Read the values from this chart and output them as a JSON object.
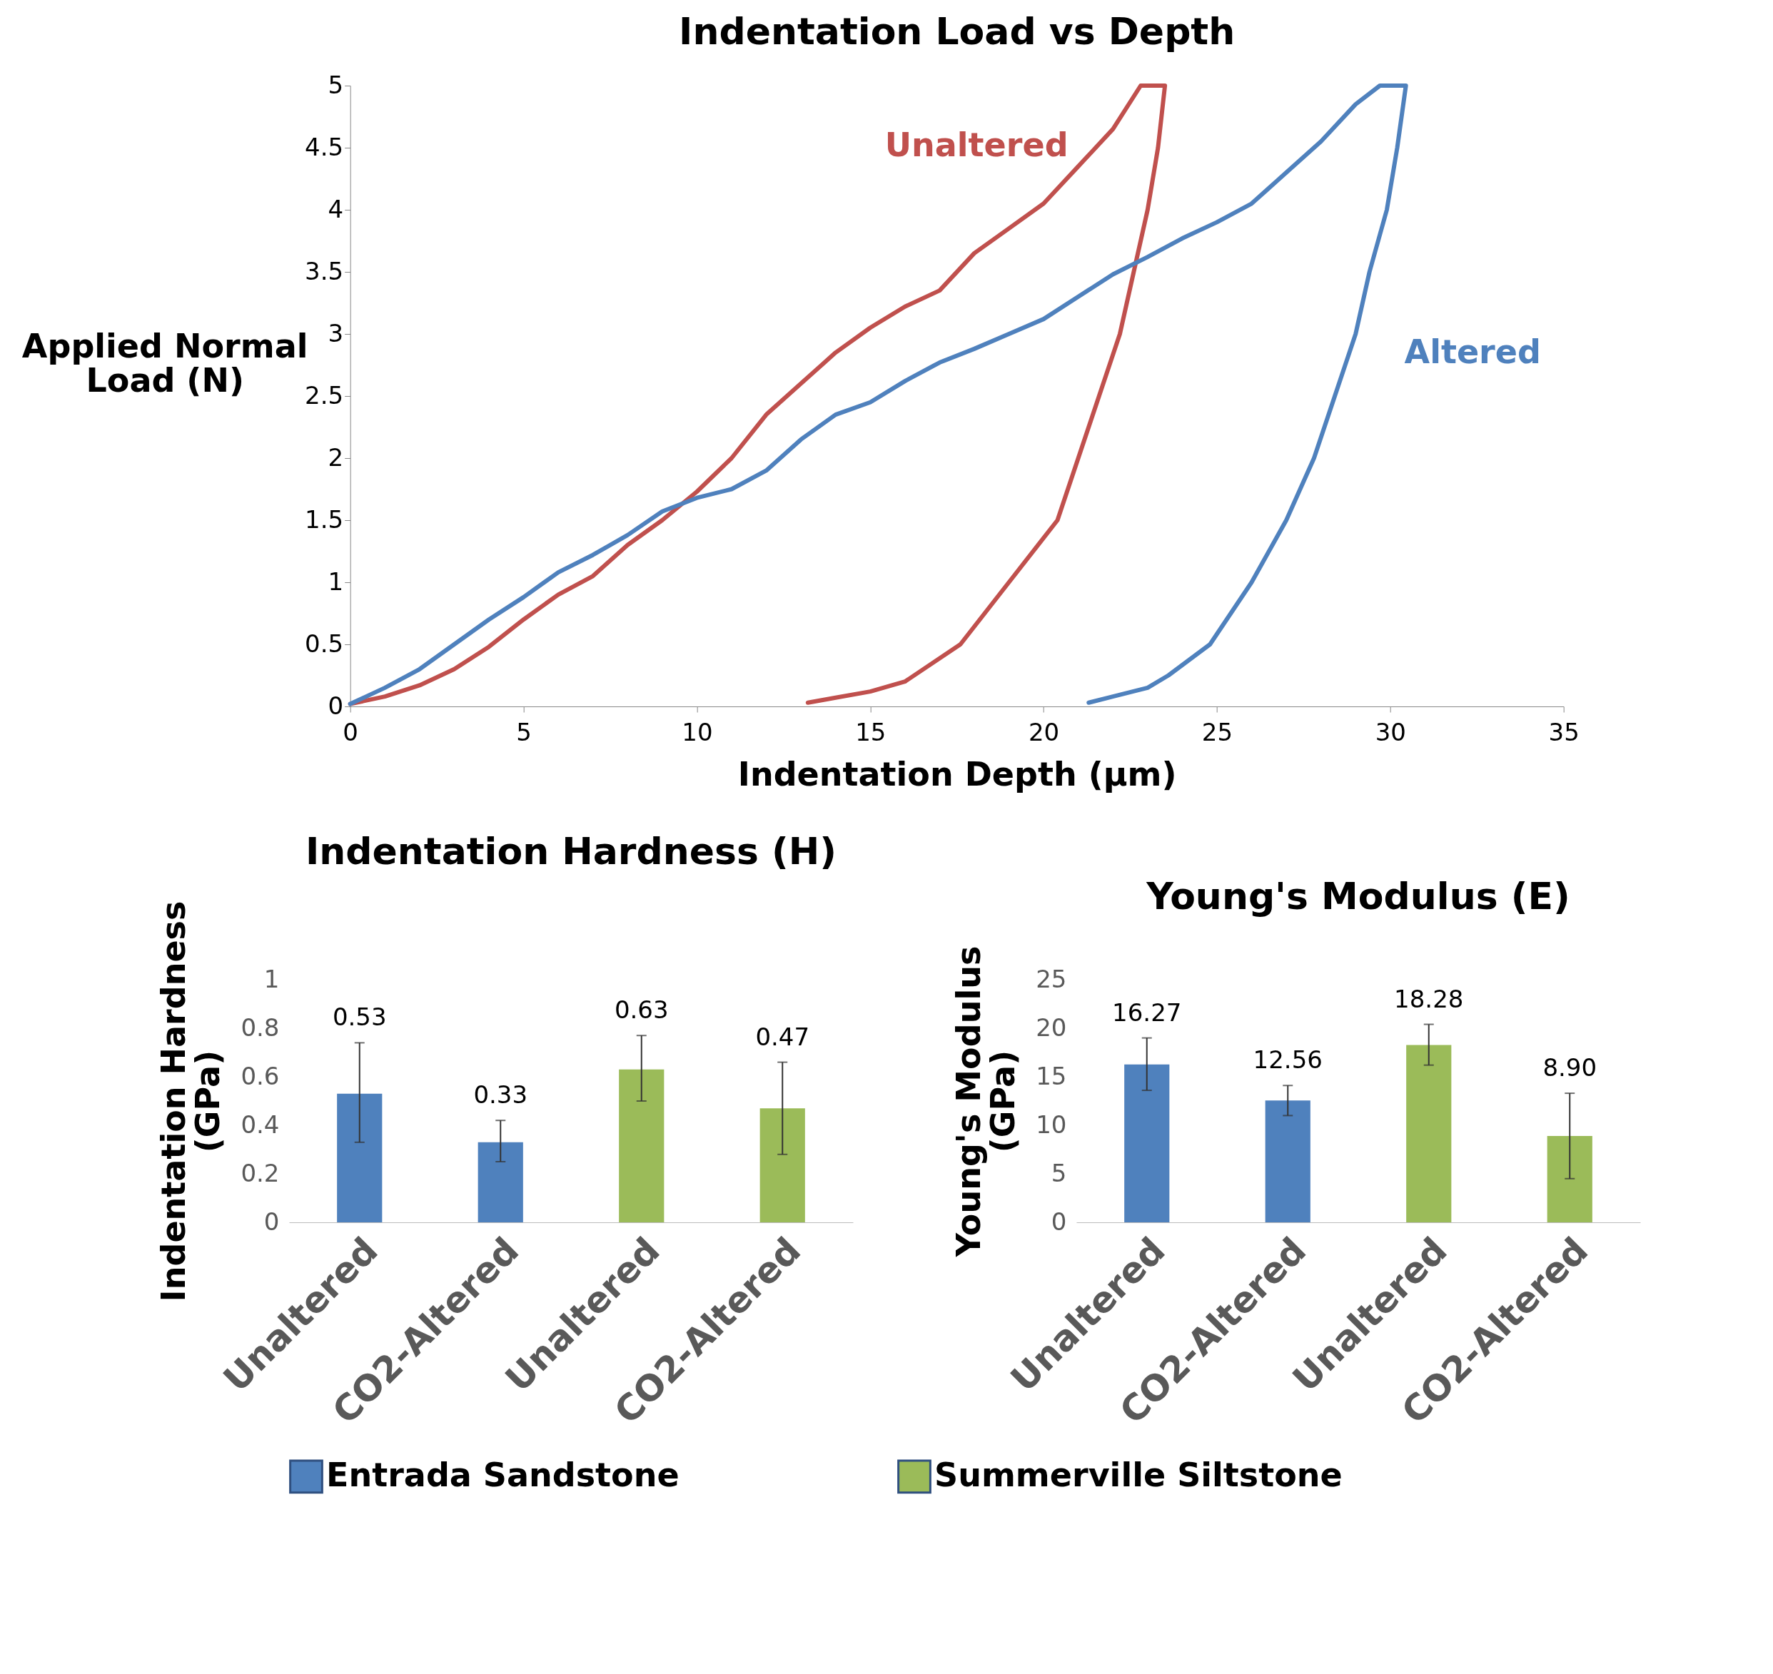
{
  "chart_data": [
    {
      "type": "line",
      "title": "Indentation Load vs Depth",
      "xlabel": "Indentation Depth (µm)",
      "ylabel": "Applied Normal Load (N)",
      "xlim": [
        0,
        35
      ],
      "xticks": [
        0,
        5,
        10,
        15,
        20,
        25,
        30,
        35
      ],
      "ylim": [
        0,
        5
      ],
      "yticks": [
        0,
        0.5,
        1,
        1.5,
        2,
        2.5,
        3,
        3.5,
        4,
        4.5,
        5
      ],
      "grid": false,
      "legend": false,
      "marker": "none",
      "line_style": "solid",
      "series": [
        {
          "name": "Unaltered",
          "color": "#c0504d",
          "x": [
            0,
            1,
            2,
            3,
            4,
            5,
            6,
            7,
            8,
            9,
            10,
            11,
            12,
            13,
            14,
            15,
            16,
            17,
            18,
            19,
            20,
            21,
            22,
            22.8,
            23.5,
            23.3,
            23.0,
            22.6,
            22.2,
            21.6,
            21.0,
            20.4,
            19.0,
            17.6,
            16.0,
            15.0,
            14.0,
            13.2
          ],
          "values": [
            0.02,
            0.08,
            0.17,
            0.3,
            0.48,
            0.7,
            0.9,
            1.05,
            1.3,
            1.5,
            1.73,
            2.0,
            2.35,
            2.6,
            2.85,
            3.05,
            3.22,
            3.35,
            3.65,
            3.85,
            4.05,
            4.35,
            4.65,
            5.0,
            5.0,
            4.5,
            4.0,
            3.5,
            3.0,
            2.5,
            2.0,
            1.5,
            1.0,
            0.5,
            0.2,
            0.12,
            0.07,
            0.03
          ]
        },
        {
          "name": "Altered",
          "color": "#4f81bd",
          "x": [
            0,
            1,
            2,
            3,
            4,
            5,
            6,
            7,
            8,
            9,
            10,
            11,
            12,
            13,
            14,
            15,
            16,
            17,
            18,
            19,
            20,
            21,
            22,
            23,
            24,
            25,
            26,
            27,
            28,
            29,
            29.7,
            30.45,
            30.2,
            29.9,
            29.4,
            29.0,
            28.4,
            27.8,
            27.0,
            26.0,
            24.8,
            23.6,
            23.0,
            22.0,
            21.3
          ],
          "values": [
            0.02,
            0.15,
            0.3,
            0.5,
            0.7,
            0.88,
            1.08,
            1.22,
            1.38,
            1.57,
            1.68,
            1.75,
            1.9,
            2.15,
            2.35,
            2.45,
            2.62,
            2.77,
            2.88,
            3.0,
            3.12,
            3.3,
            3.48,
            3.62,
            3.77,
            3.9,
            4.05,
            4.3,
            4.55,
            4.85,
            5.0,
            5.0,
            4.5,
            4.0,
            3.5,
            3.0,
            2.5,
            2.0,
            1.5,
            1.0,
            0.5,
            0.25,
            0.15,
            0.08,
            0.03
          ]
        }
      ]
    },
    {
      "type": "bar",
      "title": "Indentation Hardness (H)",
      "ylabel": "Indentation Hardness (GPa)",
      "categories": [
        "Unaltered",
        "CO2-Altered",
        "Unaltered",
        "CO2-Altered"
      ],
      "ylim": [
        0,
        1
      ],
      "yticks": [
        0,
        0.2,
        0.4,
        0.6,
        0.8,
        1
      ],
      "grid": false,
      "legend": "bottom",
      "data_labels": true,
      "series": [
        {
          "name": "Entrada Sandstone",
          "color": "#4f81bd",
          "values": [
            0.53,
            0.33,
            null,
            null
          ],
          "errors": [
            [
              0.33,
              0.74
            ],
            [
              0.25,
              0.42
            ],
            null,
            null
          ]
        },
        {
          "name": "Summerville Siltstone",
          "color": "#9bbb59",
          "values": [
            null,
            null,
            0.63,
            0.47
          ],
          "errors": [
            null,
            null,
            [
              0.5,
              0.77
            ],
            [
              0.28,
              0.66
            ]
          ]
        }
      ]
    },
    {
      "type": "bar",
      "title": "Young's Modulus (E)",
      "ylabel": "Young's Modulus (GPa)",
      "categories": [
        "Unaltered",
        "CO2-Altered",
        "Unaltered",
        "CO2-Altered"
      ],
      "ylim": [
        0,
        25
      ],
      "yticks": [
        0,
        5,
        10,
        15,
        20,
        25
      ],
      "grid": false,
      "legend": "bottom",
      "series": [
        {
          "name": "Entrada Sandstone",
          "color": "#4f81bd",
          "values": [
            16.27,
            12.56,
            null,
            null
          ],
          "errors": [
            [
              13.6,
              19.0
            ],
            [
              11.0,
              14.1
            ],
            null,
            null
          ],
          "value_labels": [
            "16.27",
            "12.56",
            null,
            null
          ]
        },
        {
          "name": "Summerville Siltstone",
          "color": "#9bbb59",
          "values": [
            null,
            null,
            18.28,
            8.9
          ],
          "errors": [
            null,
            null,
            [
              16.2,
              20.4
            ],
            [
              4.5,
              13.3
            ]
          ],
          "value_labels": [
            null,
            null,
            "18.28",
            "8.90"
          ]
        }
      ]
    }
  ]
}
